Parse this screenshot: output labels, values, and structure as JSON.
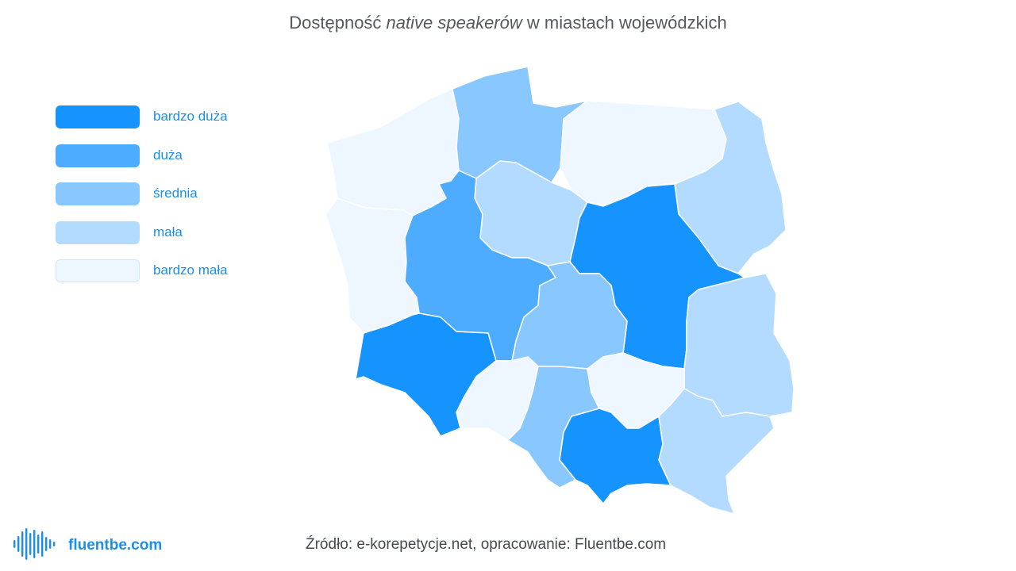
{
  "title": {
    "before": "Dostępność ",
    "emphasis": "native speakerów",
    "after": " w miastach wojewódzkich"
  },
  "legend": [
    {
      "label": "bardzo duża",
      "color": "#1593ff"
    },
    {
      "label": "duża",
      "color": "#4dacff"
    },
    {
      "label": "średnia",
      "color": "#88c7ff"
    },
    {
      "label": "mała",
      "color": "#b2dbff"
    },
    {
      "label": "bardzo mała",
      "color": "#eef7ff"
    }
  ],
  "map_regions": [
    {
      "name": "zachodniopomorskie",
      "level": "bardzo mała"
    },
    {
      "name": "pomorskie",
      "level": "średnia"
    },
    {
      "name": "warmińsko-mazurskie",
      "level": "bardzo mała"
    },
    {
      "name": "podlaskie",
      "level": "mała"
    },
    {
      "name": "lubuskie",
      "level": "bardzo mała"
    },
    {
      "name": "kujawsko-pomorskie",
      "level": "mała"
    },
    {
      "name": "wielkopolskie",
      "level": "duża"
    },
    {
      "name": "mazowieckie",
      "level": "bardzo duża"
    },
    {
      "name": "łódzkie",
      "level": "średnia"
    },
    {
      "name": "lubelskie",
      "level": "mała"
    },
    {
      "name": "dolnośląskie",
      "level": "bardzo duża"
    },
    {
      "name": "opolskie",
      "level": "bardzo mała"
    },
    {
      "name": "śląskie",
      "level": "średnia"
    },
    {
      "name": "świętokrzyskie",
      "level": "bardzo mała"
    },
    {
      "name": "małopolskie",
      "level": "bardzo duża"
    },
    {
      "name": "podkarpackie",
      "level": "mała"
    }
  ],
  "logo": {
    "text": "fluentbe.com",
    "icon": "soundwave-icon"
  },
  "source": "Źródło: e-korepetycje.net, opracowanie: Fluentbe.com"
}
